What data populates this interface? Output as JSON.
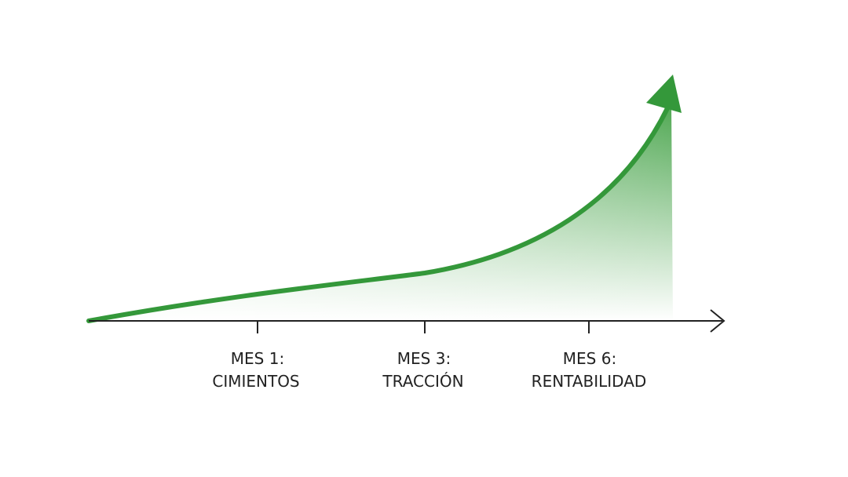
{
  "milestones": [
    {
      "line1": "MES 1:",
      "line2": "CIMIENTOS"
    },
    {
      "line1": "MES 3:",
      "line2": "TRACCIÓN"
    },
    {
      "line1": "MES 6:",
      "line2": "RENTABILIDAD"
    }
  ]
}
